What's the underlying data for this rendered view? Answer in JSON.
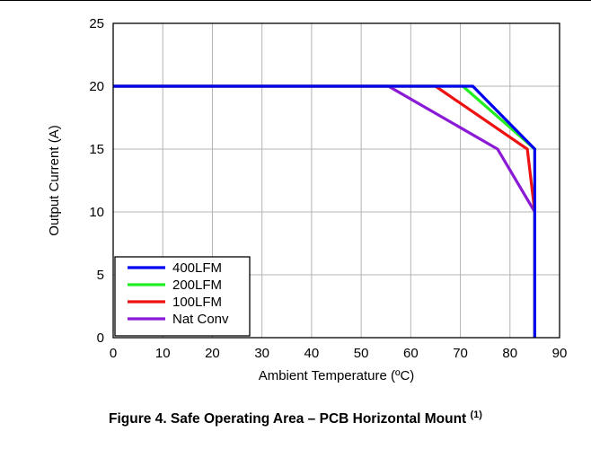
{
  "caption": {
    "text": "Figure 4. Safe Operating Area – PCB Horizontal Mount ",
    "footnote": "(1)"
  },
  "chart_data": {
    "type": "line",
    "xlabel": "Ambient Temperature (ºC)",
    "ylabel": "Output Current (A)",
    "xlim": [
      0,
      90
    ],
    "ylim": [
      0,
      25
    ],
    "xticks": [
      0,
      10,
      20,
      30,
      40,
      50,
      60,
      70,
      80,
      90
    ],
    "yticks": [
      0,
      5,
      10,
      15,
      20,
      25
    ],
    "grid": true,
    "legend_position": "bottom-left",
    "series": [
      {
        "name": "400LFM",
        "color": "#0000ee",
        "x": [
          0,
          72.5,
          85,
          85,
          85
        ],
        "y": [
          20,
          20,
          15,
          10,
          0
        ]
      },
      {
        "name": "200LFM",
        "color": "#22ee22",
        "x": [
          0,
          70.5,
          85,
          85,
          85
        ],
        "y": [
          20,
          20,
          15,
          10,
          0
        ]
      },
      {
        "name": "100LFM",
        "color": "#ee1111",
        "x": [
          0,
          65,
          83.5,
          85,
          85
        ],
        "y": [
          20,
          20,
          15,
          10,
          0
        ]
      },
      {
        "name": "Nat Conv",
        "color": "#8a1ad6",
        "x": [
          0,
          55.5,
          77.5,
          85,
          85
        ],
        "y": [
          20,
          20,
          15,
          10,
          0
        ]
      }
    ]
  }
}
